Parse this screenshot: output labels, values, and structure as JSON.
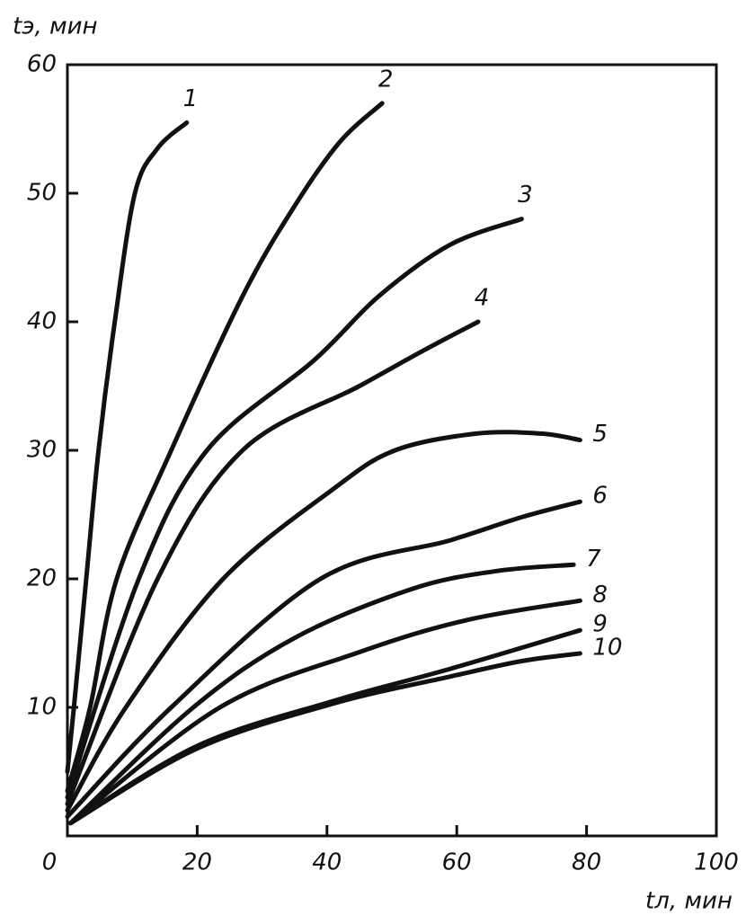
{
  "chart_data": {
    "type": "line",
    "xlabel": "tл, мин",
    "ylabel": "tэ, мин",
    "xlim": [
      0,
      100
    ],
    "ylim": [
      0,
      60
    ],
    "xticks": [
      0,
      20,
      40,
      60,
      80,
      100
    ],
    "yticks": [
      10,
      20,
      30,
      40,
      50,
      60
    ],
    "color": "#111111",
    "series": [
      {
        "name": "1",
        "x": [
          0,
          1,
          2.9,
          4.8,
          7.3,
          10.4,
          13.9,
          18.4
        ],
        "values": [
          5,
          10,
          20,
          30,
          40,
          50,
          53.5,
          55.5
        ]
      },
      {
        "name": "2",
        "x": [
          0,
          3.5,
          7.6,
          16,
          27,
          35,
          42,
          48.5
        ],
        "values": [
          3.5,
          10,
          20,
          30,
          42,
          49,
          54,
          57
        ]
      },
      {
        "name": "3",
        "x": [
          0,
          11,
          21.5,
          38,
          48,
          59,
          70
        ],
        "values": [
          3,
          20,
          30,
          37,
          42,
          46,
          48
        ]
      },
      {
        "name": "4",
        "x": [
          0,
          13.9,
          27,
          45,
          55,
          63.3
        ],
        "values": [
          2.5,
          20,
          30,
          35,
          37.8,
          40
        ]
      },
      {
        "name": "5",
        "x": [
          0,
          9,
          24,
          41,
          50.5,
          63,
          73,
          79
        ],
        "values": [
          2,
          10,
          20,
          27,
          30,
          31.3,
          31.3,
          30.8
        ]
      },
      {
        "name": "6",
        "x": [
          0,
          16,
          39,
          59,
          70,
          79
        ],
        "values": [
          1.5,
          10,
          20,
          23,
          24.8,
          26
        ]
      },
      {
        "name": "7",
        "x": [
          0.5,
          19.4,
          35,
          53,
          66,
          78
        ],
        "values": [
          1,
          10,
          15.4,
          19.2,
          20.6,
          21.1
        ]
      },
      {
        "name": "8",
        "x": [
          0.5,
          23.5,
          45,
          61.6,
          79
        ],
        "values": [
          1,
          10,
          14.3,
          16.8,
          18.3
        ]
      },
      {
        "name": "9",
        "x": [
          0.5,
          20,
          41,
          59,
          79
        ],
        "values": [
          1,
          7,
          10.5,
          13,
          16
        ]
      },
      {
        "name": "10",
        "x": [
          0.5,
          20,
          41,
          59,
          70,
          79
        ],
        "values": [
          1,
          6.8,
          10.3,
          12.4,
          13.6,
          14.2
        ]
      }
    ]
  }
}
